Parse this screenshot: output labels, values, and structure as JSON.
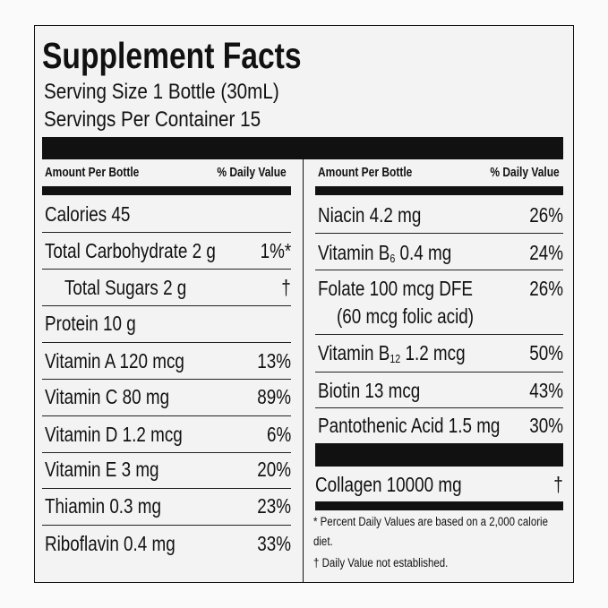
{
  "title": "Supplement Facts",
  "serving_size": "Serving Size 1 Bottle (30mL)",
  "servings_per_container": "Servings Per Container 15",
  "left": {
    "header": {
      "amount": "Amount Per Bottle",
      "daily_value": "% Daily Value"
    },
    "rows": [
      {
        "label": "Calories 45"
      },
      {
        "label": "Total Carbohydrate 2 g",
        "dv": "1%*"
      },
      {
        "label": "Total Sugars 2 g",
        "dv": "†"
      },
      {
        "label": "Protein 10 g"
      },
      {
        "label": "Vitamin A 120 mcg",
        "dv": "13%"
      },
      {
        "label": "Vitamin C 80 mg",
        "dv": "89%"
      },
      {
        "label": "Vitamin D 1.2 mcg",
        "dv": "6%"
      },
      {
        "label": "Vitamin E 3 mg",
        "dv": "20%"
      },
      {
        "label": "Thiamin 0.3 mg",
        "dv": "23%"
      },
      {
        "label": "Riboflavin 0.4 mg",
        "dv": "33%"
      }
    ]
  },
  "right": {
    "header": {
      "amount": "Amount Per Bottle",
      "daily_value": "% Daily Value"
    },
    "rows": [
      {
        "label": "Niacin 4.2 mg",
        "dv": "26%"
      },
      {
        "label": "Vitamin B",
        "subscript": "6",
        "label_rest": "0.4 mg",
        "dv": "24%"
      },
      {
        "label": "Folate 100 mcg DFE",
        "label_line2": "(60 mcg folic acid)",
        "dv": "26%"
      },
      {
        "label": "Vitamin B",
        "subscript": "12",
        "label_rest": "1.2 mcg",
        "dv": "50%"
      },
      {
        "label": "Biotin 13 mcg",
        "dv": "43%"
      },
      {
        "label": "Pantothenic Acid 1.5 mg",
        "dv": "30%"
      },
      {
        "label": "Collagen 10000 mg",
        "dv": "†"
      }
    ]
  },
  "footnotes": [
    "* Percent Daily Values are based on a 2,000 calorie diet.",
    "† Daily Value not established."
  ]
}
